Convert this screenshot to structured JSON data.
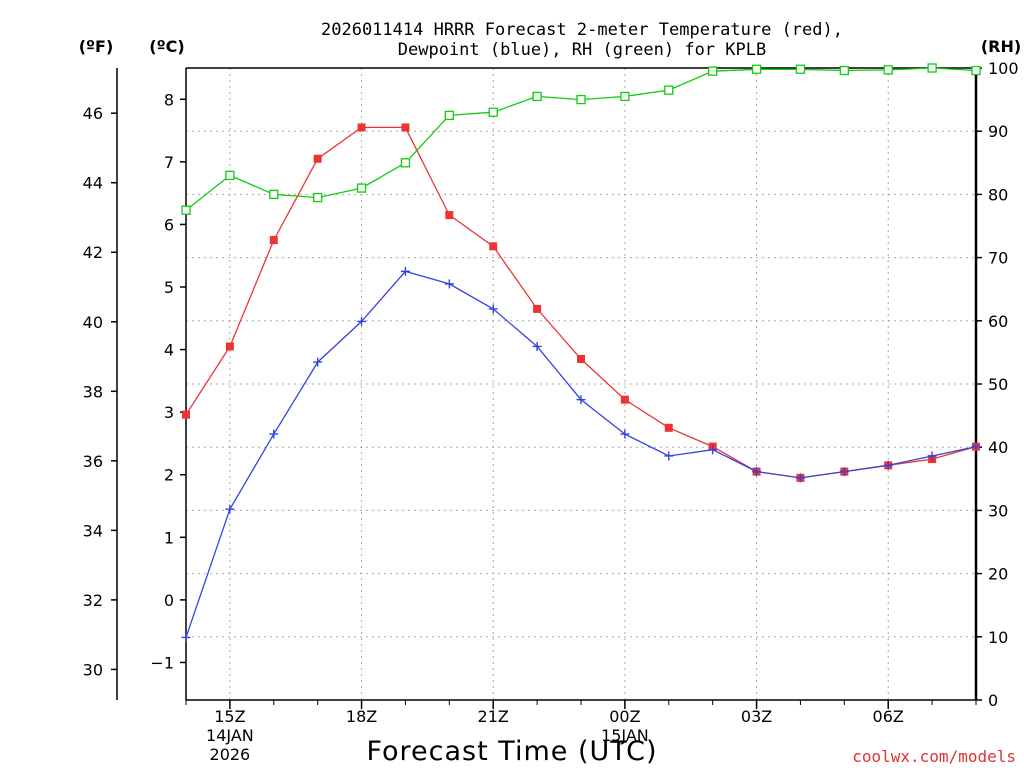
{
  "title_line1": "2026011414 HRRR Forecast 2-meter Temperature (red),",
  "title_line2": "Dewpoint (blue), RH (green) for KPLB",
  "axis_unit_f": "(ºF)",
  "axis_unit_c": "(ºC)",
  "axis_unit_rh": "(RH)",
  "xlabel": "Forecast Time (UTC)",
  "credit": "coolwx.com/models",
  "colors": {
    "temperature": "#ee3333",
    "dewpoint": "#3344dd",
    "rh": "#11cc11",
    "credit": "#dd3333"
  },
  "chart_data": {
    "type": "line",
    "x_unit": "hours since 2026-01-14 14Z",
    "x": [
      0,
      1,
      2,
      3,
      4,
      5,
      6,
      7,
      8,
      9,
      10,
      11,
      12,
      13,
      14,
      15,
      16,
      17,
      18
    ],
    "x_ticks": [
      {
        "x": 1,
        "lines": [
          "15Z",
          "14JAN",
          "2026"
        ]
      },
      {
        "x": 4,
        "lines": [
          "18Z"
        ]
      },
      {
        "x": 7,
        "lines": [
          "21Z"
        ]
      },
      {
        "x": 10,
        "lines": [
          "00Z",
          "15JAN"
        ]
      },
      {
        "x": 13,
        "lines": [
          "03Z"
        ]
      },
      {
        "x": 16,
        "lines": [
          "06Z"
        ]
      }
    ],
    "y_left_celsius": {
      "range": [
        -1.6,
        8.5
      ],
      "ticks": [
        -1,
        0,
        1,
        2,
        3,
        4,
        5,
        6,
        7,
        8
      ]
    },
    "y_left_fahrenheit": {
      "ticks": [
        30,
        32,
        34,
        36,
        38,
        40,
        42,
        44,
        46
      ]
    },
    "y_right_rh": {
      "range": [
        0,
        100
      ],
      "ticks": [
        0,
        10,
        20,
        30,
        40,
        50,
        60,
        70,
        80,
        90,
        100
      ]
    },
    "grid": true,
    "series": [
      {
        "name": "Temperature",
        "axis": "celsius",
        "marker": "filled-square",
        "values": [
          2.96,
          4.05,
          5.75,
          7.05,
          7.55,
          7.55,
          6.15,
          5.65,
          4.65,
          3.85,
          3.2,
          2.75,
          2.45,
          2.05,
          1.95,
          2.05,
          2.15,
          2.25,
          2.45
        ]
      },
      {
        "name": "Dewpoint",
        "axis": "celsius",
        "marker": "plus",
        "values": [
          -0.6,
          1.45,
          2.65,
          3.8,
          4.45,
          5.25,
          5.05,
          4.65,
          4.05,
          3.2,
          2.65,
          2.3,
          2.4,
          2.05,
          1.95,
          2.05,
          2.15,
          2.3,
          2.45
        ]
      },
      {
        "name": "RH",
        "axis": "rh",
        "marker": "open-square",
        "values": [
          77.5,
          83,
          80,
          79.5,
          81,
          85,
          92.5,
          93,
          95.5,
          95,
          95.5,
          96.5,
          99.5,
          99.8,
          99.8,
          99.6,
          99.7,
          100,
          99.6
        ]
      }
    ]
  }
}
